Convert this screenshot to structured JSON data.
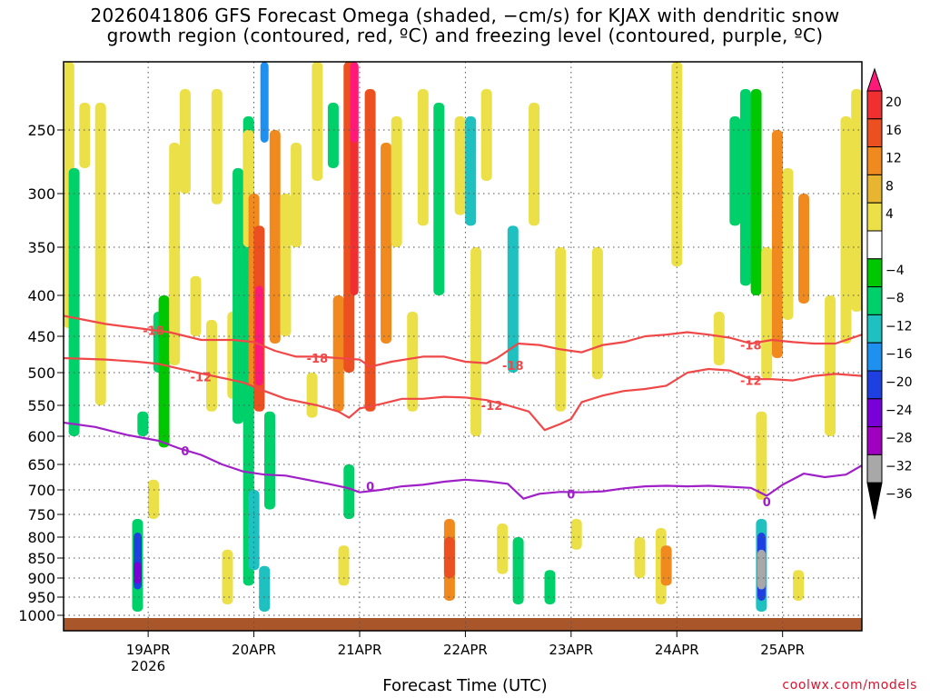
{
  "title_line1": "2026041806 GFS Forecast Omega (shaded, −cm/s) for KJAX with dendritic snow",
  "title_line2": "growth region (contoured, red, ºC) and freezing level (contoured, purple, ºC)",
  "xlabel": "Forecast Time (UTC)",
  "credit": "coolwx.com/models",
  "chart_data": {
    "type": "heatmap",
    "title": "2026041806 GFS Forecast Omega (shaded, −cm/s) for KJAX with dendritic snow growth region (contoured, red, ºC) and freezing level (contoured, purple, ºC)",
    "xlabel": "Forecast Time (UTC)",
    "ylabel": "",
    "x_range_days": [
      18.2,
      25.75
    ],
    "y_range_hpa": [
      1025,
      200
    ],
    "x_ticks": [
      {
        "day": 19,
        "label": "19APR",
        "sublabel": "2026"
      },
      {
        "day": 20,
        "label": "20APR",
        "sublabel": ""
      },
      {
        "day": 21,
        "label": "21APR",
        "sublabel": ""
      },
      {
        "day": 22,
        "label": "22APR",
        "sublabel": ""
      },
      {
        "day": 23,
        "label": "23APR",
        "sublabel": ""
      },
      {
        "day": 24,
        "label": "24APR",
        "sublabel": ""
      },
      {
        "day": 25,
        "label": "25APR",
        "sublabel": ""
      }
    ],
    "y_ticks": [
      250,
      300,
      350,
      400,
      450,
      500,
      550,
      600,
      650,
      700,
      750,
      800,
      850,
      900,
      950,
      1000
    ],
    "grid": "dotted",
    "colorbar": {
      "labels": [
        "20",
        "16",
        "12",
        "8",
        "4",
        "−4",
        "−8",
        "−12",
        "−16",
        "−20",
        "−24",
        "−28",
        "−32",
        "−36"
      ],
      "colors": [
        "#ff1a7a",
        "#f03030",
        "#ec5020",
        "#f08a1e",
        "#e7b530",
        "#ebe048",
        "#ffffff",
        "#00c800",
        "#00d06a",
        "#1ec0c0",
        "#1e90f0",
        "#1e40e0",
        "#7a00d8",
        "#a000c0",
        "#a8a8a8",
        "#000000"
      ]
    },
    "omega_cells": [
      {
        "day": 18.25,
        "p0": 440,
        "p1": 200,
        "v": 4
      },
      {
        "day": 18.3,
        "p0": 600,
        "p1": 280,
        "v": -8
      },
      {
        "day": 18.4,
        "p0": 280,
        "p1": 230,
        "v": 4
      },
      {
        "day": 18.55,
        "p0": 550,
        "p1": 230,
        "v": 6
      },
      {
        "day": 18.9,
        "p0": 990,
        "p1": 760,
        "v": -10
      },
      {
        "day": 18.9,
        "p0": 930,
        "p1": 790,
        "v": -20
      },
      {
        "day": 18.9,
        "p0": 915,
        "p1": 860,
        "v": -26
      },
      {
        "day": 18.95,
        "p0": 600,
        "p1": 560,
        "v": -8
      },
      {
        "day": 19.05,
        "p0": 760,
        "p1": 680,
        "v": 5
      },
      {
        "day": 19.1,
        "p0": 500,
        "p1": 420,
        "v": -8
      },
      {
        "day": 19.15,
        "p0": 620,
        "p1": 400,
        "v": -6
      },
      {
        "day": 19.25,
        "p0": 490,
        "p1": 260,
        "v": 6
      },
      {
        "day": 19.35,
        "p0": 300,
        "p1": 220,
        "v": 5
      },
      {
        "day": 19.45,
        "p0": 450,
        "p1": 380,
        "v": 5
      },
      {
        "day": 19.6,
        "p0": 560,
        "p1": 430,
        "v": 5
      },
      {
        "day": 19.65,
        "p0": 310,
        "p1": 220,
        "v": 5
      },
      {
        "day": 19.75,
        "p0": 970,
        "p1": 830,
        "v": 6
      },
      {
        "day": 19.8,
        "p0": 540,
        "p1": 420,
        "v": 6
      },
      {
        "day": 19.85,
        "p0": 580,
        "p1": 280,
        "v": -8
      },
      {
        "day": 19.95,
        "p0": 920,
        "p1": 240,
        "v": -8
      },
      {
        "day": 19.95,
        "p0": 350,
        "p1": 250,
        "v": 6
      },
      {
        "day": 20.0,
        "p0": 880,
        "p1": 700,
        "v": -12
      },
      {
        "day": 20.0,
        "p0": 520,
        "p1": 300,
        "v": 10
      },
      {
        "day": 20.05,
        "p0": 560,
        "p1": 330,
        "v": 14
      },
      {
        "day": 20.05,
        "p0": 520,
        "p1": 390,
        "v": 20
      },
      {
        "day": 20.1,
        "p0": 260,
        "p1": 200,
        "v": -18
      },
      {
        "day": 20.1,
        "p0": 990,
        "p1": 870,
        "v": -12
      },
      {
        "day": 20.15,
        "p0": 740,
        "p1": 560,
        "v": -8
      },
      {
        "day": 20.2,
        "p0": 460,
        "p1": 250,
        "v": 8
      },
      {
        "day": 20.3,
        "p0": 450,
        "p1": 300,
        "v": 5
      },
      {
        "day": 20.4,
        "p0": 350,
        "p1": 260,
        "v": 5
      },
      {
        "day": 20.55,
        "p0": 570,
        "p1": 500,
        "v": 5
      },
      {
        "day": 20.6,
        "p0": 290,
        "p1": 200,
        "v": 6
      },
      {
        "day": 20.75,
        "p0": 280,
        "p1": 230,
        "v": -8
      },
      {
        "day": 20.8,
        "p0": 560,
        "p1": 400,
        "v": 8
      },
      {
        "day": 20.9,
        "p0": 500,
        "p1": 200,
        "v": 14
      },
      {
        "day": 20.95,
        "p0": 400,
        "p1": 200,
        "v": 18
      },
      {
        "day": 20.95,
        "p0": 260,
        "p1": 200,
        "v": 22
      },
      {
        "day": 20.9,
        "p0": 760,
        "p1": 650,
        "v": -10
      },
      {
        "day": 20.85,
        "p0": 920,
        "p1": 820,
        "v": 6
      },
      {
        "day": 21.1,
        "p0": 560,
        "p1": 220,
        "v": 12
      },
      {
        "day": 21.25,
        "p0": 460,
        "p1": 260,
        "v": 8
      },
      {
        "day": 21.35,
        "p0": 350,
        "p1": 240,
        "v": 6
      },
      {
        "day": 21.5,
        "p0": 560,
        "p1": 420,
        "v": 5
      },
      {
        "day": 21.6,
        "p0": 330,
        "p1": 220,
        "v": 6
      },
      {
        "day": 21.75,
        "p0": 400,
        "p1": 230,
        "v": -8
      },
      {
        "day": 21.85,
        "p0": 960,
        "p1": 760,
        "v": 8
      },
      {
        "day": 21.85,
        "p0": 900,
        "p1": 800,
        "v": 12
      },
      {
        "day": 21.95,
        "p0": 320,
        "p1": 240,
        "v": 5
      },
      {
        "day": 22.05,
        "p0": 330,
        "p1": 240,
        "v": -12
      },
      {
        "day": 22.1,
        "p0": 600,
        "p1": 350,
        "v": 5
      },
      {
        "day": 22.2,
        "p0": 290,
        "p1": 220,
        "v": 6
      },
      {
        "day": 22.35,
        "p0": 890,
        "p1": 770,
        "v": 6
      },
      {
        "day": 22.45,
        "p0": 500,
        "p1": 330,
        "v": -12
      },
      {
        "day": 22.5,
        "p0": 970,
        "p1": 800,
        "v": -8
      },
      {
        "day": 22.65,
        "p0": 330,
        "p1": 230,
        "v": 5
      },
      {
        "day": 22.8,
        "p0": 970,
        "p1": 880,
        "v": -8
      },
      {
        "day": 22.9,
        "p0": 560,
        "p1": 350,
        "v": 5
      },
      {
        "day": 23.05,
        "p0": 830,
        "p1": 760,
        "v": 5
      },
      {
        "day": 23.25,
        "p0": 510,
        "p1": 350,
        "v": 5
      },
      {
        "day": 23.65,
        "p0": 900,
        "p1": 800,
        "v": 5
      },
      {
        "day": 23.85,
        "p0": 970,
        "p1": 780,
        "v": 6
      },
      {
        "day": 23.9,
        "p0": 920,
        "p1": 820,
        "v": 10
      },
      {
        "day": 24.0,
        "p0": 370,
        "p1": 200,
        "v": 5
      },
      {
        "day": 24.4,
        "p0": 490,
        "p1": 420,
        "v": 5
      },
      {
        "day": 24.55,
        "p0": 330,
        "p1": 240,
        "v": -8
      },
      {
        "day": 24.65,
        "p0": 390,
        "p1": 220,
        "v": -8
      },
      {
        "day": 24.75,
        "p0": 400,
        "p1": 220,
        "v": -6
      },
      {
        "day": 24.8,
        "p0": 990,
        "p1": 760,
        "v": -14
      },
      {
        "day": 24.8,
        "p0": 960,
        "p1": 790,
        "v": -22
      },
      {
        "day": 24.8,
        "p0": 930,
        "p1": 830,
        "v": -34
      },
      {
        "day": 24.8,
        "p0": 720,
        "p1": 560,
        "v": 6
      },
      {
        "day": 24.85,
        "p0": 510,
        "p1": 350,
        "v": 5
      },
      {
        "day": 24.95,
        "p0": 480,
        "p1": 250,
        "v": 8
      },
      {
        "day": 25.05,
        "p0": 430,
        "p1": 280,
        "v": 5
      },
      {
        "day": 25.15,
        "p0": 960,
        "p1": 880,
        "v": 5
      },
      {
        "day": 25.2,
        "p0": 410,
        "p1": 300,
        "v": 8
      },
      {
        "day": 25.45,
        "p0": 600,
        "p1": 400,
        "v": 5
      },
      {
        "day": 25.6,
        "p0": 460,
        "p1": 240,
        "v": 5
      },
      {
        "day": 25.7,
        "p0": 420,
        "p1": 220,
        "v": 5
      }
    ],
    "dgz_upper_line": {
      "name": "-18",
      "points": [
        [
          18.2,
          425
        ],
        [
          18.6,
          435
        ],
        [
          18.9,
          440
        ],
        [
          19.2,
          445
        ],
        [
          19.5,
          455
        ],
        [
          19.8,
          455
        ],
        [
          20.0,
          458
        ],
        [
          20.2,
          470
        ],
        [
          20.4,
          478
        ],
        [
          20.6,
          478
        ],
        [
          20.8,
          480
        ],
        [
          21.0,
          482
        ],
        [
          21.1,
          492
        ],
        [
          21.3,
          485
        ],
        [
          21.6,
          478
        ],
        [
          21.8,
          478
        ],
        [
          22.0,
          485
        ],
        [
          22.2,
          487
        ],
        [
          22.3,
          480
        ],
        [
          22.5,
          460
        ],
        [
          22.7,
          462
        ],
        [
          22.9,
          468
        ],
        [
          23.1,
          472
        ],
        [
          23.3,
          462
        ],
        [
          23.5,
          458
        ],
        [
          23.7,
          450
        ],
        [
          23.9,
          448
        ],
        [
          24.1,
          445
        ],
        [
          24.3,
          448
        ],
        [
          24.5,
          452
        ],
        [
          24.7,
          460
        ],
        [
          24.9,
          455
        ],
        [
          25.1,
          458
        ],
        [
          25.3,
          460
        ],
        [
          25.5,
          460
        ],
        [
          25.75,
          448
        ]
      ],
      "labels": [
        {
          "day": 19.05,
          "p": 443,
          "text": "-18"
        },
        {
          "day": 20.6,
          "p": 480,
          "text": "-18"
        },
        {
          "day": 22.45,
          "p": 490,
          "text": "-18"
        },
        {
          "day": 24.7,
          "p": 462,
          "text": "-18"
        }
      ]
    },
    "dgz_lower_line": {
      "name": "-12",
      "points": [
        [
          18.2,
          480
        ],
        [
          18.6,
          482
        ],
        [
          18.9,
          485
        ],
        [
          19.1,
          488
        ],
        [
          19.4,
          498
        ],
        [
          19.7,
          508
        ],
        [
          19.9,
          515
        ],
        [
          20.1,
          528
        ],
        [
          20.3,
          540
        ],
        [
          20.6,
          550
        ],
        [
          20.8,
          560
        ],
        [
          20.9,
          570
        ],
        [
          21.0,
          555
        ],
        [
          21.2,
          548
        ],
        [
          21.4,
          540
        ],
        [
          21.6,
          540
        ],
        [
          21.8,
          537
        ],
        [
          22.0,
          538
        ],
        [
          22.2,
          542
        ],
        [
          22.4,
          550
        ],
        [
          22.6,
          560
        ],
        [
          22.75,
          590
        ],
        [
          22.9,
          580
        ],
        [
          23.0,
          572
        ],
        [
          23.1,
          545
        ],
        [
          23.3,
          535
        ],
        [
          23.5,
          528
        ],
        [
          23.7,
          525
        ],
        [
          23.9,
          520
        ],
        [
          24.1,
          500
        ],
        [
          24.3,
          495
        ],
        [
          24.5,
          497
        ],
        [
          24.7,
          510
        ],
        [
          24.9,
          510
        ],
        [
          25.1,
          512
        ],
        [
          25.3,
          505
        ],
        [
          25.5,
          502
        ],
        [
          25.75,
          505
        ]
      ],
      "labels": [
        {
          "day": 19.5,
          "p": 506,
          "text": "-12"
        },
        {
          "day": 22.25,
          "p": 550,
          "text": "-12"
        },
        {
          "day": 24.7,
          "p": 512,
          "text": "-12"
        }
      ]
    },
    "freezing_line": {
      "name": "0",
      "points": [
        [
          18.2,
          578
        ],
        [
          18.5,
          585
        ],
        [
          18.8,
          598
        ],
        [
          19.1,
          608
        ],
        [
          19.3,
          622
        ],
        [
          19.5,
          633
        ],
        [
          19.7,
          650
        ],
        [
          19.9,
          664
        ],
        [
          20.1,
          670
        ],
        [
          20.3,
          672
        ],
        [
          20.5,
          680
        ],
        [
          20.7,
          688
        ],
        [
          20.9,
          697
        ],
        [
          21.0,
          705
        ],
        [
          21.2,
          700
        ],
        [
          21.4,
          693
        ],
        [
          21.6,
          690
        ],
        [
          21.8,
          684
        ],
        [
          22.0,
          680
        ],
        [
          22.2,
          683
        ],
        [
          22.4,
          688
        ],
        [
          22.55,
          718
        ],
        [
          22.7,
          708
        ],
        [
          22.9,
          704
        ],
        [
          23.1,
          705
        ],
        [
          23.3,
          703
        ],
        [
          23.5,
          697
        ],
        [
          23.7,
          693
        ],
        [
          23.9,
          692
        ],
        [
          24.1,
          693
        ],
        [
          24.3,
          692
        ],
        [
          24.5,
          694
        ],
        [
          24.7,
          696
        ],
        [
          24.85,
          712
        ],
        [
          25.0,
          690
        ],
        [
          25.2,
          668
        ],
        [
          25.4,
          675
        ],
        [
          25.6,
          670
        ],
        [
          25.75,
          652
        ]
      ],
      "labels": [
        {
          "day": 19.35,
          "p": 626,
          "text": "0"
        },
        {
          "day": 21.1,
          "p": 693,
          "text": "0"
        },
        {
          "day": 23.0,
          "p": 708,
          "text": "0"
        },
        {
          "day": 24.85,
          "p": 724,
          "text": "0"
        }
      ]
    }
  }
}
